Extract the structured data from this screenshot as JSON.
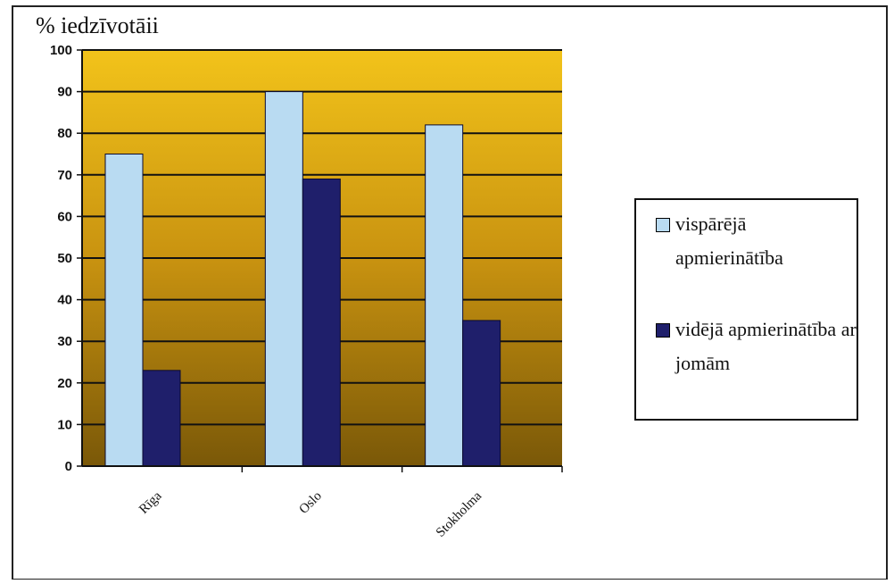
{
  "chart_data": {
    "type": "bar",
    "title": "",
    "ylabel": "% iedzīvotāii",
    "xlabel": "",
    "ylim": [
      0,
      100
    ],
    "yticks": [
      0,
      10,
      20,
      30,
      40,
      50,
      60,
      70,
      80,
      90,
      100
    ],
    "categories": [
      "Rīga",
      "Oslo",
      "Stokholma"
    ],
    "series": [
      {
        "name": "vispārējā apmierinātība",
        "values": [
          75,
          90,
          82
        ],
        "color": "#b9dbf2"
      },
      {
        "name": "vidējā apmierinātība ar jomām",
        "values": [
          23,
          69,
          35
        ],
        "color": "#1f1f6b"
      }
    ],
    "grid": true,
    "legend_position": "right",
    "plot_background": {
      "top": "#f2c31a",
      "bottom": "#7a5808"
    }
  }
}
